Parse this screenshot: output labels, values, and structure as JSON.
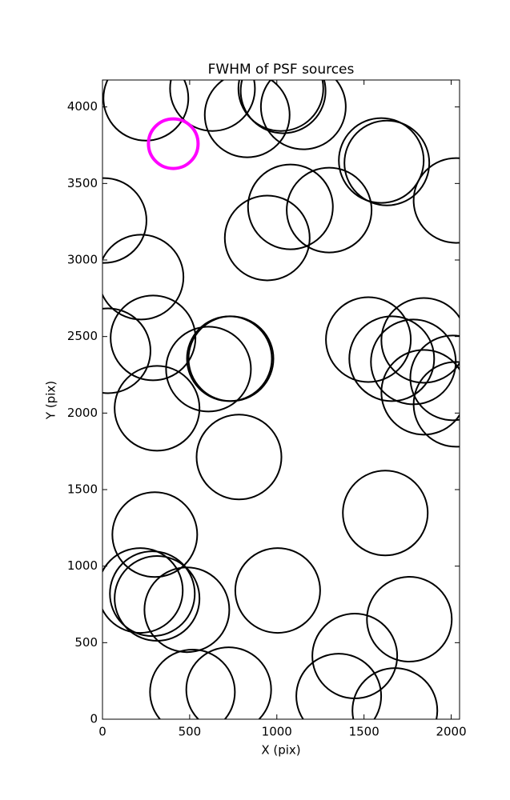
{
  "chart_data": {
    "type": "scatter",
    "title": "FWHM of PSF sources",
    "x_label": "X (pix)",
    "y_label": "Y (pix)",
    "xlim": [
      0,
      2048
    ],
    "ylim": [
      0,
      4176
    ],
    "xticks": [
      0,
      500,
      1000,
      1500,
      2000
    ],
    "yticks": [
      0,
      500,
      1000,
      1500,
      2000,
      2500,
      3000,
      3500,
      4000
    ],
    "series": [
      {
        "color": "#000000",
        "x": [
          249,
          631,
          830,
          1023,
          1036,
          1152,
          1599,
          1631,
          2028,
          9,
          1078,
          1300,
          945,
          221,
          32,
          290,
          728,
          737,
          608,
          1525,
          1659,
          1843,
          1783,
          2009,
          1843,
          2028,
          313,
          783,
          1622,
          300,
          217,
          286,
          313,
          484,
          1005,
          1760,
          1447,
          1355,
          1677,
          516,
          724
        ],
        "values": [
          4057,
          4120,
          3948,
          4120,
          4105,
          4000,
          3650,
          3634,
          3389,
          3258,
          3347,
          3326,
          3144,
          2888,
          2407,
          2491,
          2355,
          2355,
          2287,
          2480,
          2355,
          2475,
          2334,
          2230,
          2136,
          2057,
          2031,
          1713,
          1347,
          1206,
          841,
          820,
          789,
          715,
          841,
          653,
          413,
          151,
          57,
          178,
          193
        ]
      },
      {
        "color": "#ff00ff",
        "x": [
          406
        ],
        "values": [
          3760
        ]
      }
    ]
  }
}
